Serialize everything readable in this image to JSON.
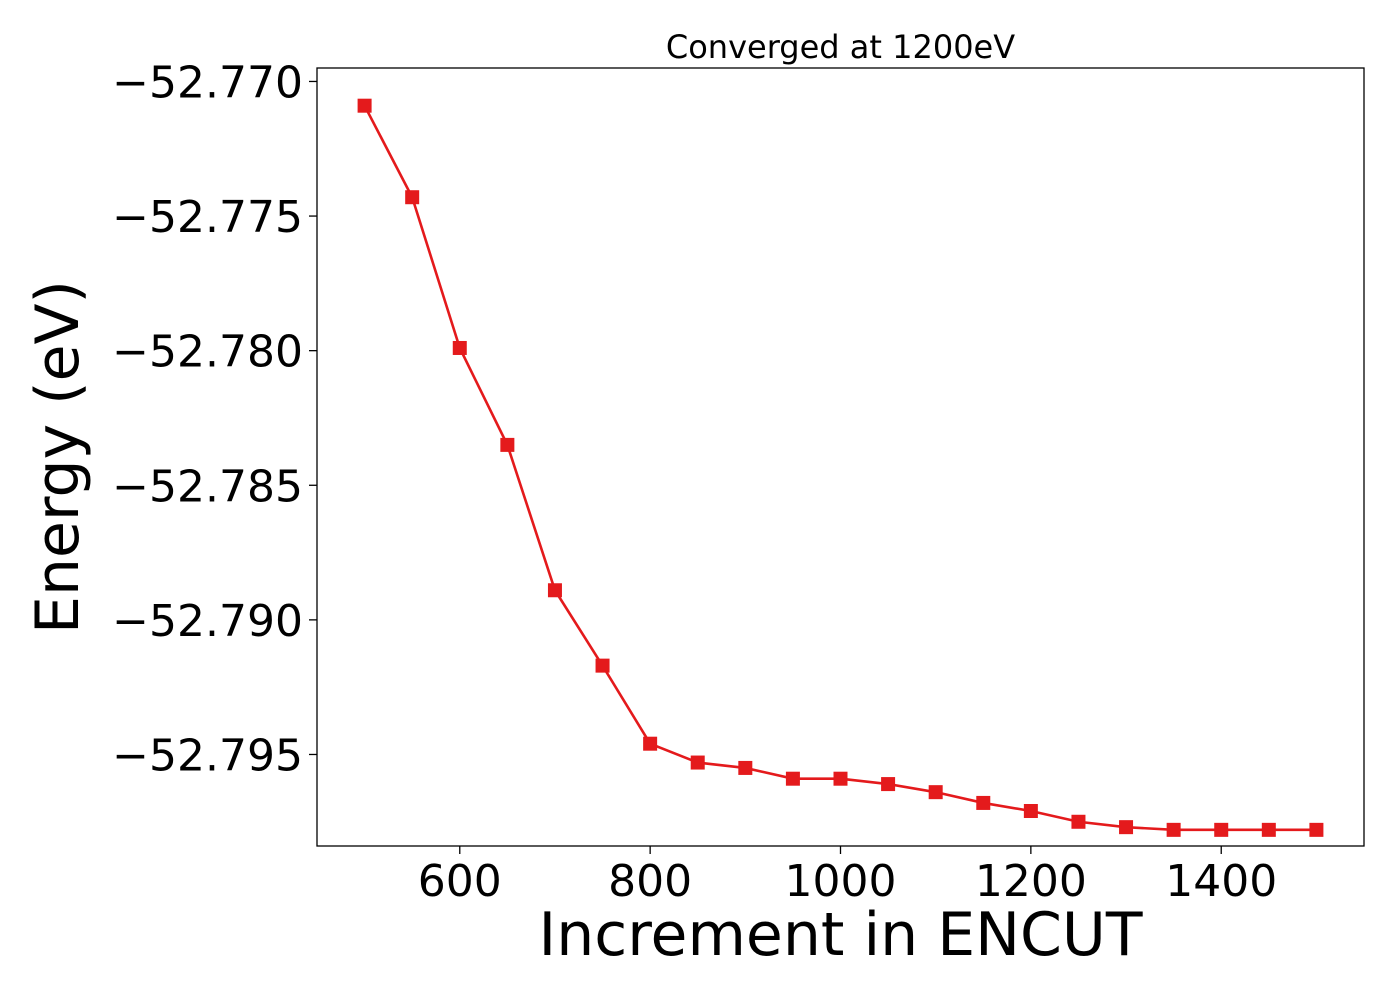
{
  "chart_data": {
    "type": "line",
    "title": "Converged at 1200eV",
    "xlabel": "Increment in ENCUT",
    "ylabel": "Energy (eV)",
    "xlim": [
      450,
      1550
    ],
    "ylim": [
      -52.7984,
      -52.7695
    ],
    "x_ticks": [
      600,
      800,
      1000,
      1200,
      1400
    ],
    "x_tick_labels": [
      "600",
      "800",
      "1000",
      "1200",
      "1400"
    ],
    "y_ticks": [
      -52.77,
      -52.775,
      -52.78,
      -52.785,
      -52.79,
      -52.795
    ],
    "y_tick_labels": [
      "−52.770",
      "−52.775",
      "−52.780",
      "−52.785",
      "−52.790",
      "−52.795"
    ],
    "grid": false,
    "series": [
      {
        "color": "#e41a1c",
        "marker": "square",
        "x": [
          500,
          550,
          600,
          650,
          700,
          750,
          800,
          850,
          900,
          950,
          1000,
          1050,
          1100,
          1150,
          1200,
          1250,
          1300,
          1350,
          1400,
          1450,
          1500
        ],
        "y": [
          -52.7709,
          -52.7743,
          -52.7799,
          -52.7835,
          -52.7889,
          -52.7917,
          -52.7946,
          -52.7953,
          -52.7955,
          -52.7959,
          -52.7959,
          -52.7961,
          -52.7964,
          -52.7968,
          -52.7971,
          -52.7975,
          -52.7977,
          -52.7978,
          -52.7978,
          -52.7978,
          -52.7978
        ]
      }
    ]
  }
}
